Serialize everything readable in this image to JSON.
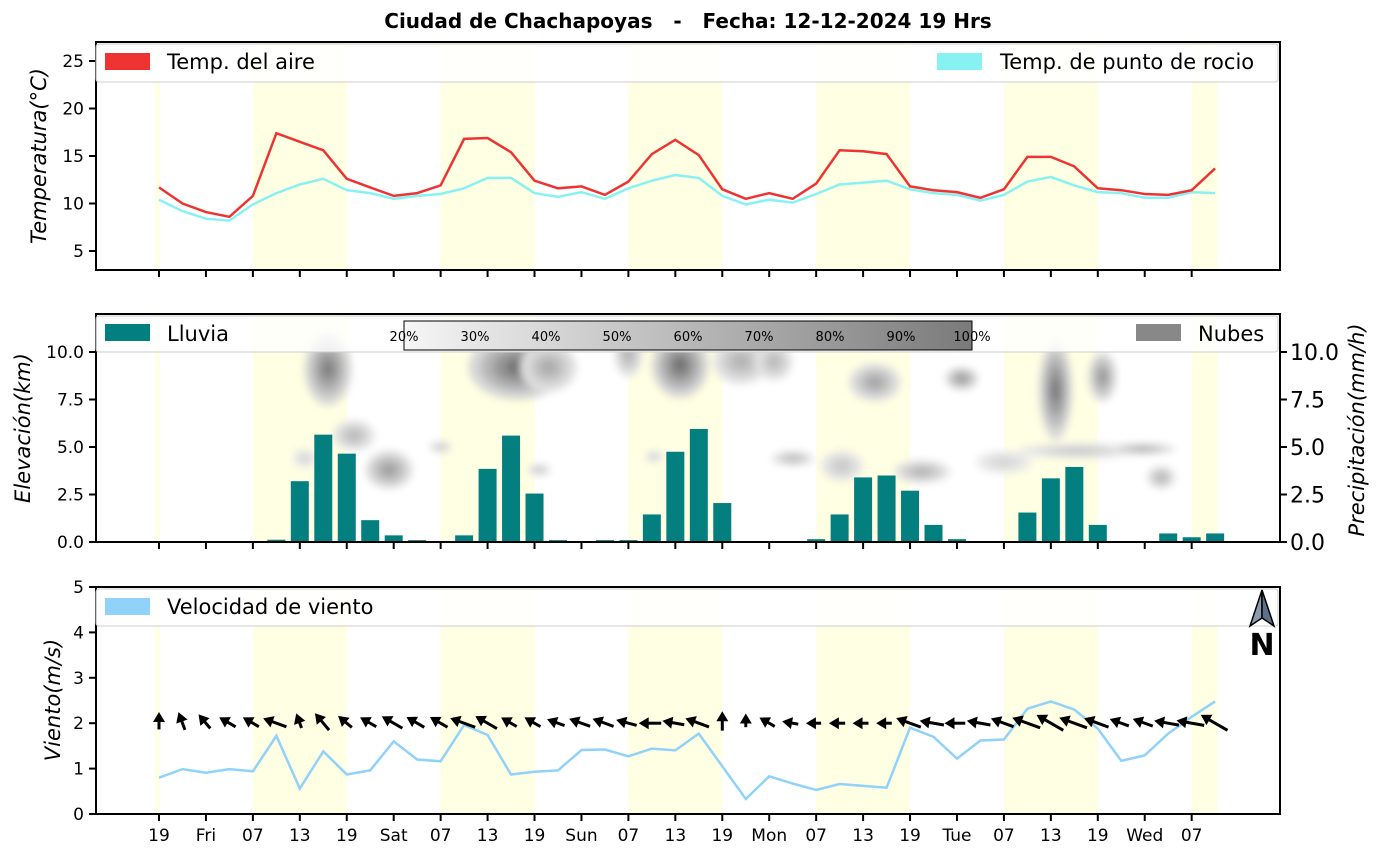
{
  "chart_data": [
    {
      "type": "line",
      "title": "Ciudad de Chachapoyas   -   Fecha: 12-12-2024 19 Hrs",
      "ylabel": "Temperatura(°C)",
      "ylim": [
        3,
        27
      ],
      "yticks": [
        5,
        10,
        15,
        20,
        25
      ],
      "x_step_hours": 3,
      "series": [
        {
          "name": "Temp. del aire",
          "color": "#ee3333",
          "values": [
            11.7,
            10.0,
            9.1,
            8.6,
            10.8,
            17.4,
            16.5,
            15.6,
            12.6,
            11.7,
            10.8,
            11.1,
            11.9,
            16.8,
            16.9,
            15.4,
            12.4,
            11.6,
            11.8,
            10.9,
            12.3,
            15.2,
            16.7,
            15.1,
            11.5,
            10.5,
            11.1,
            10.5,
            12.1,
            15.6,
            15.5,
            15.2,
            11.8,
            11.4,
            11.2,
            10.6,
            11.5,
            14.9,
            14.9,
            13.9,
            11.6,
            11.4,
            11.0,
            10.9,
            11.4,
            13.7
          ]
        },
        {
          "name": "Temp. de punto de rocio",
          "color": "#88f2f2",
          "values": [
            10.4,
            9.2,
            8.4,
            8.2,
            9.9,
            11.1,
            12.0,
            12.6,
            11.4,
            11.1,
            10.5,
            10.8,
            11.0,
            11.6,
            12.7,
            12.7,
            11.1,
            10.7,
            11.2,
            10.5,
            11.6,
            12.4,
            13.0,
            12.7,
            10.8,
            9.9,
            10.4,
            10.1,
            11.0,
            12.0,
            12.2,
            12.4,
            11.5,
            11.1,
            10.9,
            10.3,
            10.9,
            12.3,
            12.8,
            11.9,
            11.2,
            11.1,
            10.6,
            10.6,
            11.2,
            11.1
          ]
        }
      ]
    },
    {
      "type": "bar",
      "ylabel_left": "Elevación(km)",
      "ylabel_right": "Precipitación(mm/h)",
      "ylim": [
        0,
        12
      ],
      "yticks": [
        "0.0",
        "2.5",
        "5.0",
        "7.5",
        "10.0"
      ],
      "rain_name": "Lluvia",
      "rain_color": "#047f7f",
      "rain": [
        0,
        0,
        0,
        0,
        0,
        0.12,
        3.2,
        5.65,
        4.65,
        1.15,
        0.35,
        0.1,
        0.05,
        0.35,
        3.85,
        5.6,
        2.55,
        0.1,
        0.05,
        0.1,
        0.1,
        1.45,
        4.75,
        5.95,
        2.05,
        0.05,
        0,
        0.05,
        0.15,
        1.45,
        3.4,
        3.5,
        2.7,
        0.9,
        0.15,
        0,
        0.05,
        1.55,
        3.35,
        3.95,
        0.9,
        0,
        0.05,
        0.45,
        0.25,
        0.45
      ],
      "cloud_name": "Nubes",
      "cloud_color": "#888888",
      "colorbar_labels": [
        "20%",
        "30%",
        "40%",
        "50%",
        "60%",
        "70%",
        "80%",
        "90%",
        "100%"
      ],
      "clouds": [
        {
          "x": 7.2,
          "y": 9.1,
          "rx": 1.0,
          "ry": 1.9,
          "c": 0.85
        },
        {
          "x": 8.3,
          "y": 5.6,
          "rx": 0.9,
          "ry": 0.8,
          "c": 0.45
        },
        {
          "x": 6.2,
          "y": 4.4,
          "rx": 0.5,
          "ry": 0.5,
          "c": 0.25
        },
        {
          "x": 9.8,
          "y": 3.8,
          "rx": 1.0,
          "ry": 1.0,
          "c": 0.65
        },
        {
          "x": 12.0,
          "y": 5.0,
          "rx": 0.5,
          "ry": 0.3,
          "c": 0.35
        },
        {
          "x": 15.3,
          "y": 9.2,
          "rx": 2.1,
          "ry": 1.7,
          "c": 0.95
        },
        {
          "x": 16.6,
          "y": 9.2,
          "rx": 1.2,
          "ry": 1.3,
          "c": 0.55
        },
        {
          "x": 16.2,
          "y": 3.8,
          "rx": 0.5,
          "ry": 0.3,
          "c": 0.4
        },
        {
          "x": 20.0,
          "y": 9.9,
          "rx": 0.6,
          "ry": 1.2,
          "c": 0.5
        },
        {
          "x": 21.1,
          "y": 4.5,
          "rx": 0.4,
          "ry": 0.3,
          "c": 0.3
        },
        {
          "x": 22.2,
          "y": 9.3,
          "rx": 1.2,
          "ry": 1.7,
          "c": 0.95
        },
        {
          "x": 24.8,
          "y": 9.5,
          "rx": 1.2,
          "ry": 1.2,
          "c": 0.5
        },
        {
          "x": 26.2,
          "y": 9.5,
          "rx": 0.8,
          "ry": 1.0,
          "c": 0.45
        },
        {
          "x": 27.0,
          "y": 4.4,
          "rx": 0.9,
          "ry": 0.4,
          "c": 0.45
        },
        {
          "x": 29.1,
          "y": 4.0,
          "rx": 0.9,
          "ry": 0.8,
          "c": 0.35
        },
        {
          "x": 30.5,
          "y": 8.4,
          "rx": 1.1,
          "ry": 1.0,
          "c": 0.6
        },
        {
          "x": 32.5,
          "y": 3.7,
          "rx": 1.2,
          "ry": 0.6,
          "c": 0.5
        },
        {
          "x": 34.2,
          "y": 8.6,
          "rx": 0.7,
          "ry": 0.6,
          "c": 0.7
        },
        {
          "x": 38.2,
          "y": 8.0,
          "rx": 0.7,
          "ry": 2.6,
          "c": 0.9
        },
        {
          "x": 40.2,
          "y": 8.7,
          "rx": 0.6,
          "ry": 1.3,
          "c": 0.7
        },
        {
          "x": 39.2,
          "y": 4.8,
          "rx": 2.6,
          "ry": 0.4,
          "c": 0.35
        },
        {
          "x": 41.9,
          "y": 4.9,
          "rx": 1.4,
          "ry": 0.3,
          "c": 0.55
        },
        {
          "x": 42.7,
          "y": 3.4,
          "rx": 0.6,
          "ry": 0.6,
          "c": 0.5
        },
        {
          "x": 36.0,
          "y": 4.2,
          "rx": 1.2,
          "ry": 0.6,
          "c": 0.25
        }
      ]
    },
    {
      "type": "line",
      "ylabel": "Viento(m/s)",
      "ylim": [
        0,
        5
      ],
      "yticks": [
        0,
        1,
        2,
        3,
        4,
        5
      ],
      "series": [
        {
          "name": "Velocidad de viento",
          "color": "#90d2fa",
          "values": [
            0.8,
            0.99,
            0.91,
            0.99,
            0.94,
            1.72,
            0.56,
            1.38,
            0.87,
            0.96,
            1.6,
            1.2,
            1.16,
            1.96,
            1.74,
            0.87,
            0.93,
            0.96,
            1.41,
            1.42,
            1.27,
            1.44,
            1.4,
            1.77,
            1.05,
            0.33,
            0.83,
            0.67,
            0.53,
            0.66,
            0.62,
            0.58,
            1.9,
            1.7,
            1.22,
            1.62,
            1.64,
            2.32,
            2.48,
            2.3,
            1.88,
            1.17,
            1.29,
            1.77,
            2.14,
            2.48
          ]
        }
      ],
      "arrows_y": 2,
      "arrow_dirs_deg": [
        0,
        340,
        320,
        300,
        300,
        290,
        340,
        320,
        310,
        300,
        300,
        300,
        300,
        290,
        300,
        300,
        300,
        290,
        290,
        290,
        285,
        270,
        280,
        290,
        0,
        0,
        300,
        280,
        270,
        270,
        270,
        270,
        290,
        280,
        270,
        280,
        290,
        290,
        300,
        290,
        290,
        290,
        290,
        280,
        280,
        300
      ],
      "north_label": "N"
    }
  ],
  "x_tick_labels": [
    "19",
    "Fri",
    "07",
    "13",
    "19",
    "Sat",
    "07",
    "13",
    "19",
    "Sun",
    "07",
    "13",
    "19",
    "Mon",
    "07",
    "13",
    "19",
    "Tue",
    "07",
    "13",
    "19",
    "Wed",
    "07"
  ]
}
